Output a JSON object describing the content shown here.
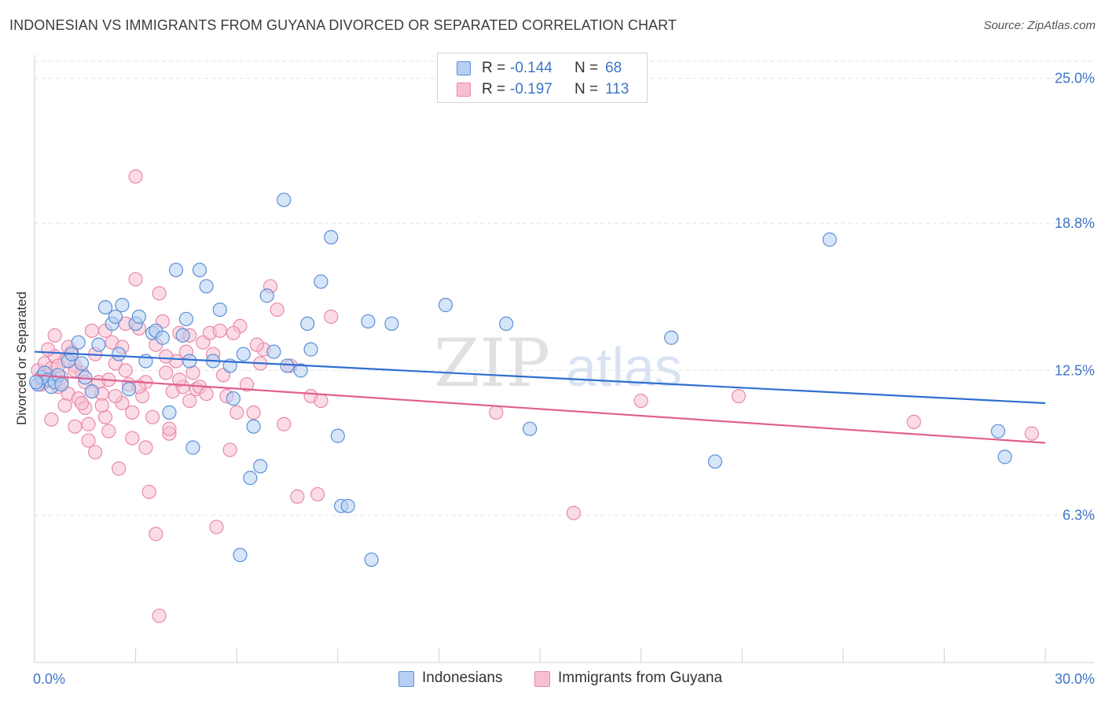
{
  "title": "INDONESIAN VS IMMIGRANTS FROM GUYANA DIVORCED OR SEPARATED CORRELATION CHART",
  "source": "Source: ZipAtlas.com",
  "watermark": {
    "zip": "ZIP",
    "atlas": "atlas"
  },
  "colors": {
    "indonesians_fill": "#b7cff2",
    "indonesians_stroke": "#5b8fd6",
    "indonesians_line": "#2f6fd0",
    "guyana_fill": "#f8bfd2",
    "guyana_stroke": "#e889aa",
    "guyana_line": "#e0608f",
    "tick_label": "#3d74c8",
    "grid": "#e2e2e2"
  },
  "stats": [
    {
      "r_label": "R =",
      "r_value": "-0.144",
      "n_label": "N =",
      "n_value": "68"
    },
    {
      "r_label": "R =",
      "r_value": "-0.197",
      "n_label": "N =",
      "n_value": "113"
    }
  ],
  "legend": [
    {
      "label": "Indonesians"
    },
    {
      "label": "Immigrants from Guyana"
    }
  ],
  "chart_data": {
    "type": "scatter",
    "title": "INDONESIAN VS IMMIGRANTS FROM GUYANA DIVORCED OR SEPARATED CORRELATION CHART",
    "xlabel": "",
    "ylabel": "Divorced or Separated",
    "xlim": [
      0,
      30
    ],
    "ylim": [
      0,
      26
    ],
    "x_tick_labels": [
      "0.0%",
      "30.0%"
    ],
    "y_ticks": [
      {
        "value": 6.3,
        "label": "6.3%"
      },
      {
        "value": 12.5,
        "label": "12.5%"
      },
      {
        "value": 18.8,
        "label": "18.8%"
      },
      {
        "value": 25.0,
        "label": "25.0%"
      }
    ],
    "grid": "horizontal dashed",
    "legend_position": "bottom-center",
    "series": [
      {
        "name": "Indonesians",
        "trend": {
          "x": [
            0,
            30
          ],
          "y": [
            13.3,
            11.1
          ]
        },
        "points": [
          [
            0.1,
            11.9
          ],
          [
            0.2,
            12.2
          ],
          [
            0.3,
            12.4
          ],
          [
            0.4,
            12.1
          ],
          [
            0.5,
            11.8
          ],
          [
            0.6,
            12.0
          ],
          [
            0.7,
            12.3
          ],
          [
            0.8,
            11.9
          ],
          [
            1.0,
            12.9
          ],
          [
            1.1,
            13.2
          ],
          [
            1.3,
            13.7
          ],
          [
            1.4,
            12.8
          ],
          [
            1.5,
            12.2
          ],
          [
            1.7,
            11.6
          ],
          [
            1.9,
            13.6
          ],
          [
            2.1,
            15.2
          ],
          [
            2.3,
            14.5
          ],
          [
            2.4,
            14.8
          ],
          [
            2.5,
            13.2
          ],
          [
            2.6,
            15.3
          ],
          [
            2.8,
            11.7
          ],
          [
            3.0,
            14.5
          ],
          [
            3.1,
            14.8
          ],
          [
            3.3,
            12.9
          ],
          [
            3.5,
            14.1
          ],
          [
            3.6,
            14.2
          ],
          [
            3.8,
            13.9
          ],
          [
            4.0,
            10.7
          ],
          [
            4.2,
            16.8
          ],
          [
            4.4,
            14.0
          ],
          [
            4.5,
            14.7
          ],
          [
            4.6,
            12.9
          ],
          [
            4.7,
            9.2
          ],
          [
            4.9,
            16.8
          ],
          [
            5.1,
            16.1
          ],
          [
            5.3,
            12.9
          ],
          [
            5.5,
            15.1
          ],
          [
            5.8,
            12.7
          ],
          [
            5.9,
            11.3
          ],
          [
            6.1,
            4.6
          ],
          [
            6.2,
            13.2
          ],
          [
            6.4,
            7.9
          ],
          [
            6.5,
            10.1
          ],
          [
            6.7,
            8.4
          ],
          [
            6.9,
            15.7
          ],
          [
            7.1,
            13.3
          ],
          [
            7.4,
            19.8
          ],
          [
            7.5,
            12.7
          ],
          [
            7.9,
            12.5
          ],
          [
            8.1,
            14.5
          ],
          [
            8.2,
            13.4
          ],
          [
            8.5,
            16.3
          ],
          [
            8.8,
            18.2
          ],
          [
            9.0,
            9.7
          ],
          [
            9.1,
            6.7
          ],
          [
            9.3,
            6.7
          ],
          [
            9.9,
            14.6
          ],
          [
            10.0,
            4.4
          ],
          [
            10.6,
            14.5
          ],
          [
            12.2,
            15.3
          ],
          [
            14.0,
            14.5
          ],
          [
            14.7,
            10.0
          ],
          [
            18.9,
            13.9
          ],
          [
            20.2,
            8.6
          ],
          [
            23.6,
            18.1
          ],
          [
            28.6,
            9.9
          ],
          [
            28.8,
            8.8
          ],
          [
            0.05,
            12.0
          ]
        ]
      },
      {
        "name": "Immigrants from Guyana",
        "trend": {
          "x": [
            0,
            30
          ],
          "y": [
            12.3,
            9.4
          ]
        },
        "points": [
          [
            0.1,
            12.5
          ],
          [
            0.2,
            12.1
          ],
          [
            0.3,
            12.8
          ],
          [
            0.4,
            12.3
          ],
          [
            0.5,
            12.6
          ],
          [
            0.6,
            13.1
          ],
          [
            0.7,
            11.8
          ],
          [
            0.8,
            12.2
          ],
          [
            0.9,
            12.9
          ],
          [
            1.0,
            11.5
          ],
          [
            1.1,
            13.3
          ],
          [
            1.2,
            12.7
          ],
          [
            1.3,
            11.3
          ],
          [
            1.4,
            12.4
          ],
          [
            1.5,
            10.9
          ],
          [
            1.6,
            10.2
          ],
          [
            1.7,
            11.6
          ],
          [
            1.8,
            13.2
          ],
          [
            1.9,
            12.0
          ],
          [
            2.0,
            11.5
          ],
          [
            2.1,
            10.5
          ],
          [
            2.2,
            9.9
          ],
          [
            2.3,
            13.7
          ],
          [
            2.4,
            12.8
          ],
          [
            2.5,
            8.3
          ],
          [
            2.6,
            11.1
          ],
          [
            2.7,
            12.5
          ],
          [
            2.8,
            11.9
          ],
          [
            2.9,
            10.7
          ],
          [
            3.0,
            16.4
          ],
          [
            3.1,
            14.3
          ],
          [
            3.2,
            11.4
          ],
          [
            3.3,
            9.2
          ],
          [
            3.4,
            7.3
          ],
          [
            3.5,
            10.5
          ],
          [
            3.6,
            13.6
          ],
          [
            3.7,
            15.8
          ],
          [
            3.8,
            14.6
          ],
          [
            3.9,
            12.4
          ],
          [
            4.0,
            9.8
          ],
          [
            4.1,
            11.6
          ],
          [
            4.2,
            12.9
          ],
          [
            4.3,
            14.1
          ],
          [
            4.4,
            11.8
          ],
          [
            4.5,
            13.3
          ],
          [
            4.6,
            11.2
          ],
          [
            4.7,
            12.4
          ],
          [
            4.8,
            11.7
          ],
          [
            4.9,
            11.8
          ],
          [
            5.0,
            13.7
          ],
          [
            5.1,
            11.5
          ],
          [
            5.2,
            14.1
          ],
          [
            5.3,
            13.2
          ],
          [
            5.4,
            5.8
          ],
          [
            5.5,
            14.2
          ],
          [
            5.6,
            12.3
          ],
          [
            5.7,
            11.4
          ],
          [
            5.8,
            9.1
          ],
          [
            6.0,
            10.7
          ],
          [
            6.1,
            14.4
          ],
          [
            6.3,
            11.9
          ],
          [
            6.5,
            10.7
          ],
          [
            6.7,
            12.8
          ],
          [
            6.8,
            13.4
          ],
          [
            7.0,
            16.1
          ],
          [
            7.2,
            15.1
          ],
          [
            7.4,
            10.2
          ],
          [
            7.6,
            12.7
          ],
          [
            7.8,
            7.1
          ],
          [
            8.2,
            11.4
          ],
          [
            8.4,
            7.2
          ],
          [
            8.5,
            11.2
          ],
          [
            8.8,
            14.8
          ],
          [
            3.0,
            20.8
          ],
          [
            3.6,
            5.5
          ],
          [
            3.7,
            2.0
          ],
          [
            1.2,
            10.1
          ],
          [
            1.4,
            11.1
          ],
          [
            1.6,
            9.5
          ],
          [
            1.8,
            9.0
          ],
          [
            2.0,
            11.0
          ],
          [
            0.6,
            14.0
          ],
          [
            0.8,
            12.0
          ],
          [
            1.0,
            13.5
          ],
          [
            2.2,
            12.1
          ],
          [
            2.7,
            14.5
          ],
          [
            3.3,
            12.0
          ],
          [
            4.0,
            10.0
          ],
          [
            4.3,
            12.1
          ],
          [
            0.3,
            12.0
          ],
          [
            0.4,
            13.4
          ],
          [
            0.9,
            11.0
          ],
          [
            2.4,
            11.4
          ],
          [
            2.9,
            9.6
          ],
          [
            5.9,
            14.1
          ],
          [
            6.6,
            13.6
          ],
          [
            1.5,
            12.0
          ],
          [
            1.7,
            14.2
          ],
          [
            2.1,
            14.2
          ],
          [
            3.1,
            11.8
          ],
          [
            0.2,
            11.9
          ],
          [
            0.7,
            12.7
          ],
          [
            13.7,
            10.7
          ],
          [
            16.0,
            6.4
          ],
          [
            18.0,
            11.2
          ],
          [
            20.9,
            11.4
          ],
          [
            26.1,
            10.3
          ],
          [
            29.6,
            9.8
          ],
          [
            0.5,
            10.4
          ],
          [
            1.2,
            12.5
          ],
          [
            3.9,
            13.1
          ],
          [
            2.6,
            13.5
          ],
          [
            4.6,
            14.0
          ]
        ]
      }
    ]
  }
}
